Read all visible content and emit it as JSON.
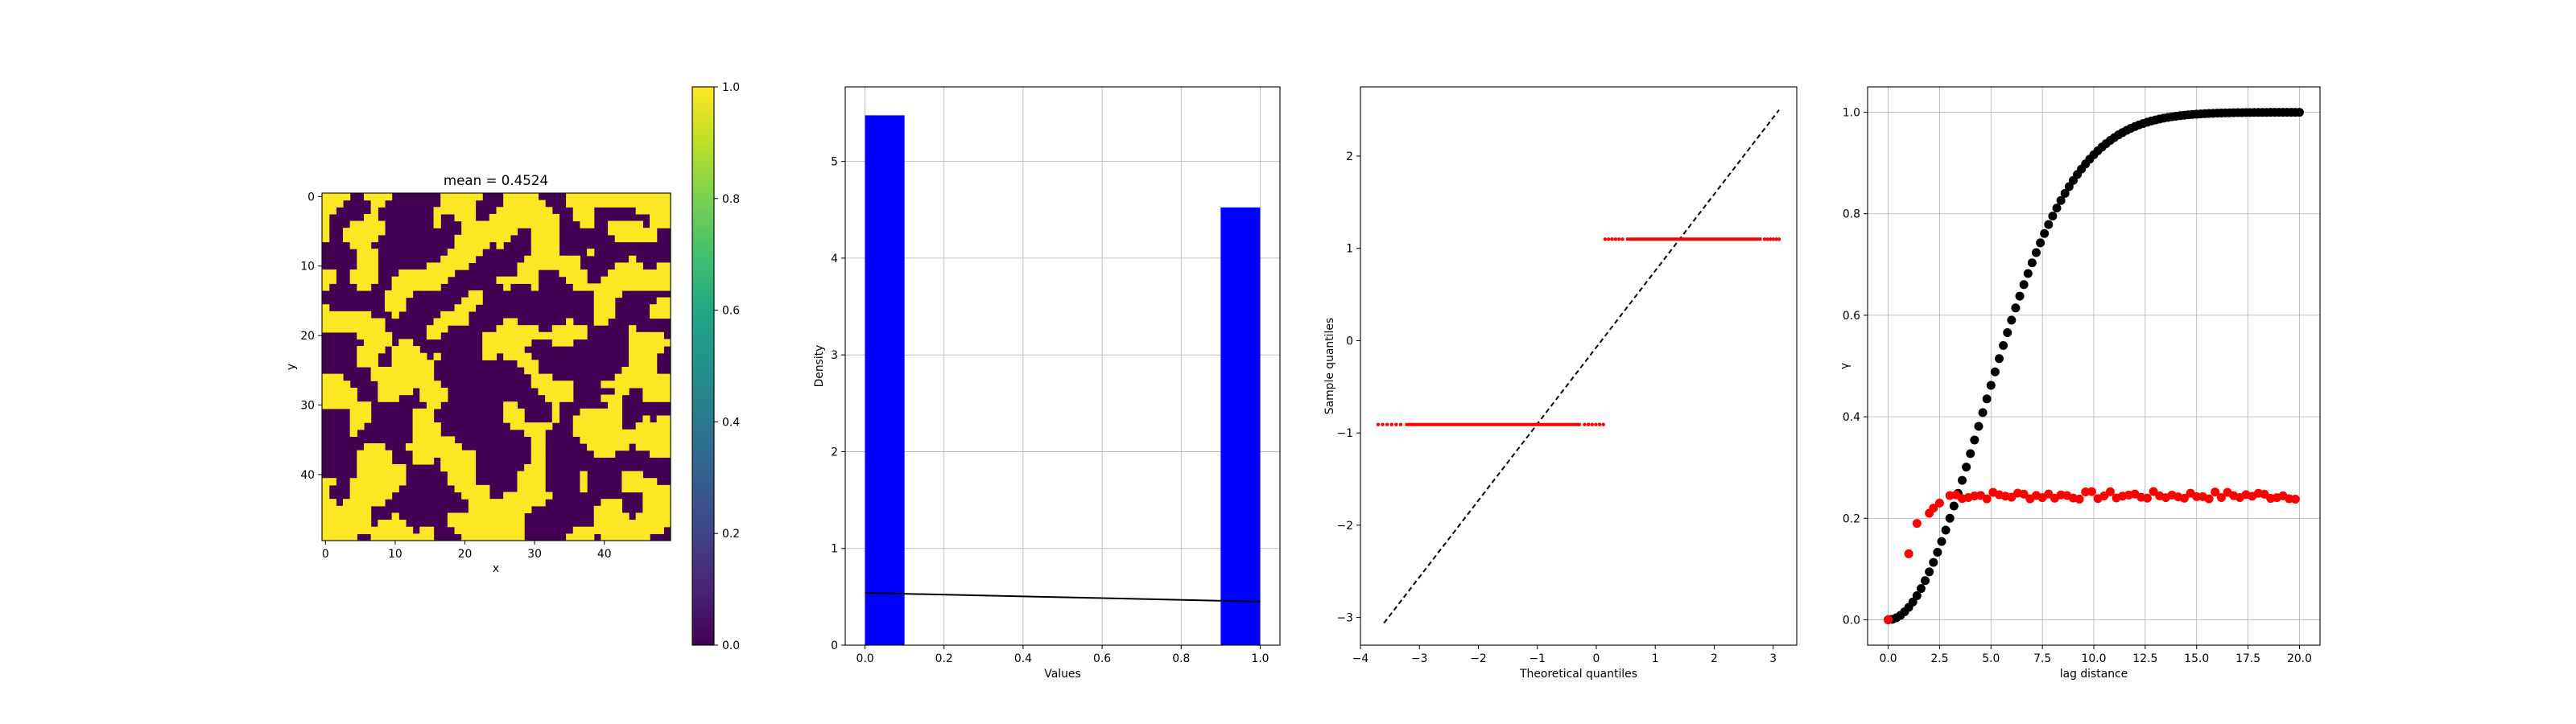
{
  "chart_data": [
    {
      "type": "heatmap",
      "title": "mean = 0.4524",
      "xlabel": "x",
      "ylabel": "y",
      "xticks": [
        "0",
        "10",
        "20",
        "30",
        "40"
      ],
      "yticks": [
        "0",
        "10",
        "20",
        "30",
        "40"
      ],
      "grid_size": [
        50,
        50
      ],
      "values_binary": true,
      "mean": 0.4524,
      "colormap": "viridis",
      "colorbar": {
        "range": [
          0.0,
          1.0
        ],
        "ticks": [
          "0.0",
          "0.2",
          "0.4",
          "0.6",
          "0.8",
          "1.0"
        ]
      },
      "grid": false
    },
    {
      "type": "bar",
      "xlabel": "Values",
      "ylabel": "Density",
      "xlim": [
        -0.05,
        1.05
      ],
      "ylim": [
        0,
        5.77
      ],
      "xticks": [
        "0.0",
        "0.2",
        "0.4",
        "0.6",
        "0.8",
        "1.0"
      ],
      "yticks": [
        "0",
        "1",
        "2",
        "3",
        "4",
        "5"
      ],
      "bars": [
        {
          "x_start": 0.0,
          "x_end": 0.1,
          "density": 5.476
        },
        {
          "x_start": 0.9,
          "x_end": 1.0,
          "density": 4.524
        }
      ],
      "line": {
        "x": [
          0.0,
          1.0
        ],
        "y": [
          0.54,
          0.45
        ]
      },
      "bar_color": "#0000ff",
      "line_color": "#000000",
      "grid": true
    },
    {
      "type": "scatter",
      "xlabel": "Theoretical quantiles",
      "ylabel": "Sample quantiles",
      "xlim": [
        -4.0,
        3.4
      ],
      "ylim": [
        -3.3,
        2.75
      ],
      "xticks": [
        "−4",
        "−3",
        "−2",
        "−1",
        "0",
        "1",
        "2",
        "3"
      ],
      "yticks": [
        "−3",
        "−2",
        "−1",
        "0",
        "1",
        "2"
      ],
      "points": [
        {
          "x_start": -3.7,
          "x_end": 0.12,
          "y": -0.909
        },
        {
          "x_start": 0.15,
          "x_end": 3.1,
          "y": 1.1
        }
      ],
      "reference_line": {
        "x": [
          -3.6,
          3.1
        ],
        "y": [
          -3.06,
          2.5
        ]
      },
      "point_color": "#ff0000",
      "line_color": "#000000",
      "grid": false
    },
    {
      "type": "scatter",
      "xlabel": "lag distance",
      "ylabel": "γ",
      "xlim": [
        -1.0,
        21.0
      ],
      "ylim": [
        -0.05,
        1.05
      ],
      "xticks": [
        "0.0",
        "2.5",
        "5.0",
        "7.5",
        "10.0",
        "12.5",
        "15.0",
        "17.5",
        "20.0"
      ],
      "yticks": [
        "0.0",
        "0.2",
        "0.4",
        "0.6",
        "0.8",
        "1.0"
      ],
      "series": [
        {
          "color": "#000000",
          "model": "gaussian",
          "range": 11.0,
          "sill": 1.0,
          "x_from": 0,
          "x_to": 20,
          "n": 100
        },
        {
          "color": "#ff0000",
          "model": "empirical",
          "sill": 0.245,
          "x_from": 0,
          "x_to": 20
        }
      ],
      "grid": true
    }
  ]
}
